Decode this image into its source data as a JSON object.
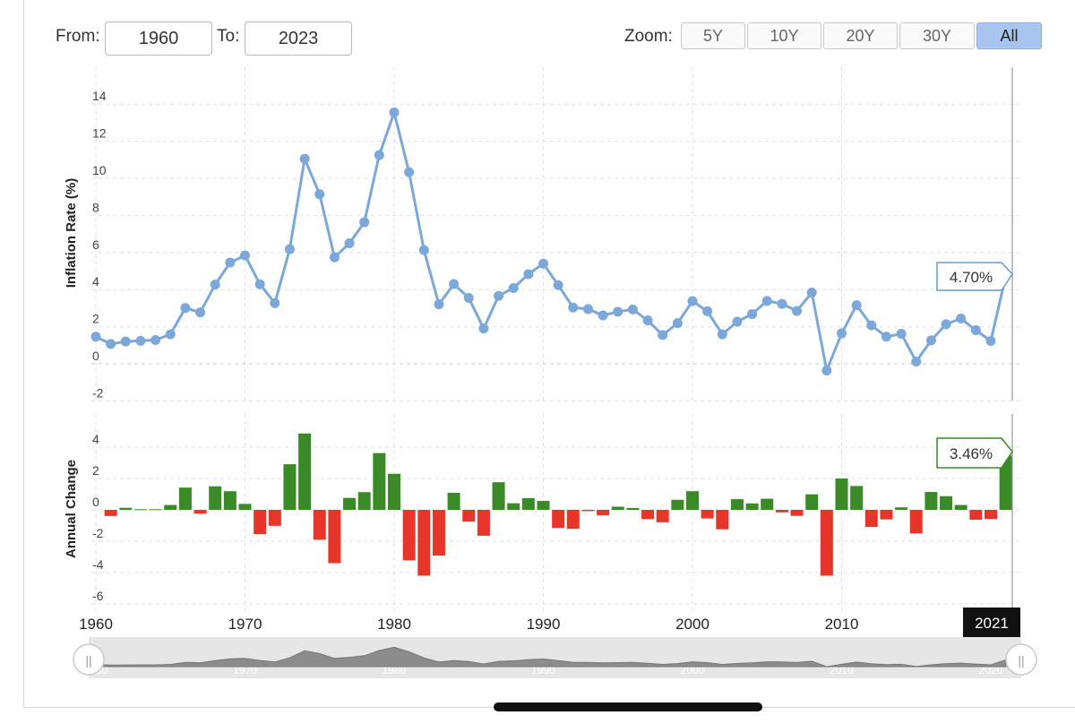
{
  "range": {
    "from_label": "From:",
    "from_value": "1960",
    "to_label": "To:",
    "to_value": "2023"
  },
  "zoom": {
    "label": "Zoom:",
    "buttons": [
      "5Y",
      "10Y",
      "20Y",
      "30Y",
      "All"
    ],
    "active": "All"
  },
  "colors": {
    "line": "#7ba7d9",
    "positive": "#3a8a27",
    "negative": "#e8352a",
    "active_zoom": "#a8c5ef",
    "navigator": "#8c8c8c"
  },
  "chart_data": [
    {
      "type": "line",
      "ylabel": "Inflation Rate (%)",
      "ylim": [
        -2,
        15
      ],
      "yticks": [
        -2,
        0,
        2,
        4,
        6,
        8,
        10,
        12,
        14
      ],
      "x": [
        1960,
        1961,
        1962,
        1963,
        1964,
        1965,
        1966,
        1967,
        1968,
        1969,
        1970,
        1971,
        1972,
        1973,
        1974,
        1975,
        1976,
        1977,
        1978,
        1979,
        1980,
        1981,
        1982,
        1983,
        1984,
        1985,
        1986,
        1987,
        1988,
        1989,
        1990,
        1991,
        1992,
        1993,
        1994,
        1995,
        1996,
        1997,
        1998,
        1999,
        2000,
        2001,
        2002,
        2003,
        2004,
        2005,
        2006,
        2007,
        2008,
        2009,
        2010,
        2011,
        2012,
        2013,
        2014,
        2015,
        2016,
        2017,
        2018,
        2019,
        2020,
        2021
      ],
      "values": [
        1.46,
        1.07,
        1.2,
        1.24,
        1.28,
        1.59,
        3.01,
        2.77,
        4.27,
        5.46,
        5.84,
        4.29,
        3.27,
        6.18,
        11.05,
        9.14,
        5.74,
        6.5,
        7.63,
        11.25,
        13.55,
        10.33,
        6.13,
        3.21,
        4.3,
        3.55,
        1.9,
        3.66,
        4.08,
        4.83,
        5.4,
        4.24,
        3.03,
        2.95,
        2.61,
        2.81,
        2.93,
        2.34,
        1.55,
        2.19,
        3.38,
        2.83,
        1.59,
        2.27,
        2.68,
        3.39,
        3.23,
        2.85,
        3.84,
        -0.36,
        1.64,
        3.16,
        2.07,
        1.46,
        1.62,
        0.12,
        1.26,
        2.13,
        2.44,
        1.81,
        1.23,
        4.7
      ],
      "grid": true,
      "tooltip": "4.70%",
      "tooltip_year": "2021"
    },
    {
      "type": "bar",
      "ylabel": "Annual Change",
      "ylim": [
        -6.5,
        5
      ],
      "yticks": [
        -6,
        -4,
        -2,
        0,
        2,
        4
      ],
      "x": [
        1960,
        1961,
        1962,
        1963,
        1964,
        1965,
        1966,
        1967,
        1968,
        1969,
        1970,
        1971,
        1972,
        1973,
        1974,
        1975,
        1976,
        1977,
        1978,
        1979,
        1980,
        1981,
        1982,
        1983,
        1984,
        1985,
        1986,
        1987,
        1988,
        1989,
        1990,
        1991,
        1992,
        1993,
        1994,
        1995,
        1996,
        1997,
        1998,
        1999,
        2000,
        2001,
        2002,
        2003,
        2004,
        2005,
        2006,
        2007,
        2008,
        2009,
        2010,
        2011,
        2012,
        2013,
        2014,
        2015,
        2016,
        2017,
        2018,
        2019,
        2020,
        2021
      ],
      "values": [
        0,
        -0.39,
        0.13,
        0.04,
        0.04,
        0.31,
        1.42,
        -0.24,
        1.5,
        1.19,
        0.38,
        -1.55,
        -1.02,
        2.91,
        4.87,
        -1.91,
        -3.4,
        0.76,
        1.13,
        3.62,
        2.3,
        -3.22,
        -4.2,
        -2.92,
        1.09,
        -0.75,
        -1.65,
        1.76,
        0.42,
        0.75,
        0.57,
        -1.16,
        -1.21,
        -0.08,
        -0.34,
        0.2,
        0.12,
        -0.59,
        -0.79,
        0.64,
        1.19,
        -0.55,
        -1.24,
        0.68,
        0.41,
        0.71,
        -0.16,
        -0.38,
        0.99,
        -4.2,
        2.0,
        1.52,
        -1.09,
        -0.61,
        0.16,
        -1.5,
        1.14,
        0.87,
        0.31,
        -0.63,
        -0.58,
        3.46
      ],
      "grid": true,
      "tooltip": "3.46%"
    }
  ],
  "xaxis": {
    "ticks": [
      "1960",
      "1970",
      "1980",
      "1990",
      "2000",
      "2010"
    ],
    "crosshair_label": "2021"
  },
  "navigator": {
    "ticks": [
      "1960",
      "1970",
      "1980",
      "1990",
      "2000",
      "2010",
      "2020"
    ],
    "handle_glyph": "||"
  }
}
